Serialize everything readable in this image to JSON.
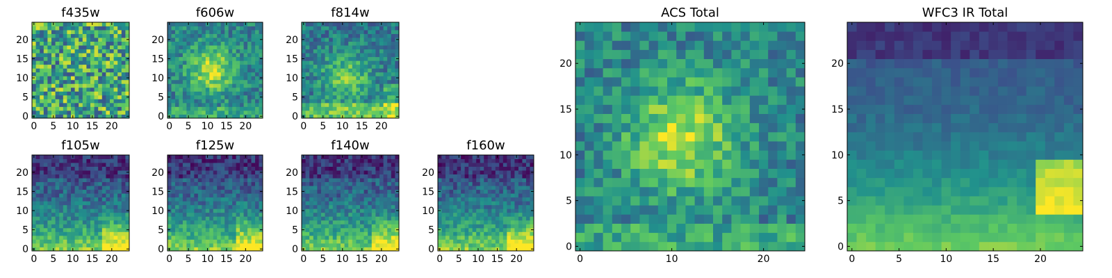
{
  "colormap": [
    "#440154",
    "#3b528b",
    "#21918c",
    "#5ec962",
    "#fde725"
  ],
  "chart_data": [
    {
      "type": "heatmap",
      "title": "f435w",
      "grid_size": 25,
      "xlim": [
        0,
        24
      ],
      "ylim": [
        0,
        24
      ],
      "xticks": [
        0,
        5,
        10,
        15,
        20
      ],
      "yticks": [
        0,
        5,
        10,
        15,
        20
      ],
      "pattern": "noise",
      "seed": 11
    },
    {
      "type": "heatmap",
      "title": "f606w",
      "grid_size": 25,
      "xlim": [
        0,
        24
      ],
      "ylim": [
        0,
        24
      ],
      "xticks": [
        0,
        5,
        10,
        15,
        20
      ],
      "yticks": [
        0,
        5,
        10,
        15,
        20
      ],
      "pattern": "central",
      "seed": 23
    },
    {
      "type": "heatmap",
      "title": "f814w",
      "grid_size": 25,
      "xlim": [
        0,
        24
      ],
      "ylim": [
        0,
        24
      ],
      "xticks": [
        0,
        5,
        10,
        15,
        20
      ],
      "yticks": [
        0,
        5,
        10,
        15,
        20
      ],
      "pattern": "central-bottom",
      "seed": 37
    },
    {
      "type": "heatmap",
      "title": "f105w",
      "grid_size": 25,
      "xlim": [
        0,
        24
      ],
      "ylim": [
        0,
        24
      ],
      "xticks": [
        0,
        5,
        10,
        15,
        20
      ],
      "yticks": [
        0,
        5,
        10,
        15,
        20
      ],
      "pattern": "ir",
      "seed": 41
    },
    {
      "type": "heatmap",
      "title": "f125w",
      "grid_size": 25,
      "xlim": [
        0,
        24
      ],
      "ylim": [
        0,
        24
      ],
      "xticks": [
        0,
        5,
        10,
        15,
        20
      ],
      "yticks": [
        0,
        5,
        10,
        15,
        20
      ],
      "pattern": "ir",
      "seed": 53
    },
    {
      "type": "heatmap",
      "title": "f140w",
      "grid_size": 25,
      "xlim": [
        0,
        24
      ],
      "ylim": [
        0,
        24
      ],
      "xticks": [
        0,
        5,
        10,
        15,
        20
      ],
      "yticks": [
        0,
        5,
        10,
        15,
        20
      ],
      "pattern": "ir",
      "seed": 67
    },
    {
      "type": "heatmap",
      "title": "f160w",
      "grid_size": 25,
      "xlim": [
        0,
        24
      ],
      "ylim": [
        0,
        24
      ],
      "xticks": [
        0,
        5,
        10,
        15,
        20
      ],
      "yticks": [
        0,
        5,
        10,
        15,
        20
      ],
      "pattern": "ir",
      "seed": 79
    },
    {
      "type": "heatmap",
      "title": "ACS Total",
      "grid_size": 25,
      "xlim": [
        0,
        24
      ],
      "ylim": [
        0,
        24
      ],
      "xticks": [
        0,
        10,
        20
      ],
      "yticks": [
        0,
        5,
        10,
        15,
        20
      ],
      "pattern": "central",
      "seed": 97
    },
    {
      "type": "heatmap",
      "title": "WFC3 IR Total",
      "grid_size": 25,
      "xlim": [
        0,
        24
      ],
      "ylim": [
        0,
        24
      ],
      "xticks": [
        0,
        5,
        10,
        15,
        20
      ],
      "yticks": [
        0,
        5,
        10,
        15,
        20
      ],
      "pattern": "ir-smooth",
      "seed": 103
    }
  ]
}
